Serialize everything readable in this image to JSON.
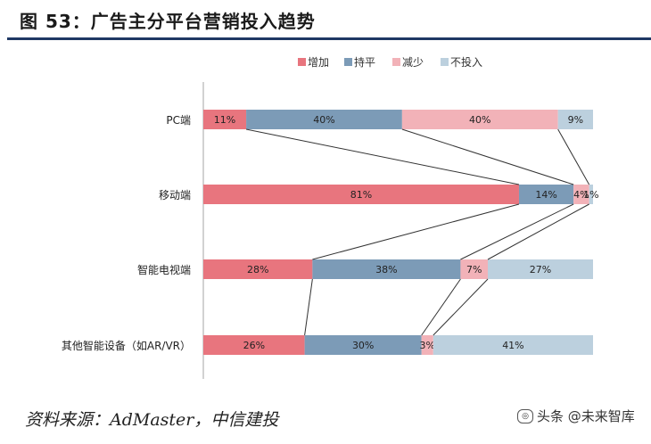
{
  "figure": {
    "title": "图 53：广告主分平台营销投入趋势",
    "source": "资料来源：AdMaster，中信建投",
    "watermark": "头条 @未来智库"
  },
  "colors": {
    "increase": "#e8757e",
    "flat": "#7c9bb7",
    "decrease": "#f2b2b8",
    "none": "#bcd0de",
    "title_rule": "#1f3864"
  },
  "chart_data": {
    "type": "bar",
    "orientation": "horizontal",
    "stacked": true,
    "title": "",
    "xlabel": "",
    "ylabel": "",
    "xlim": [
      0,
      100
    ],
    "legend_position": "top-right",
    "categories": [
      "PC端",
      "移动端",
      "智能电视端",
      "其他智能设备（如AR/VR）"
    ],
    "series": [
      {
        "name": "增加",
        "values": [
          11,
          81,
          28,
          26
        ],
        "labels": [
          "11%",
          "81%",
          "28%",
          "26%"
        ]
      },
      {
        "name": "持平",
        "values": [
          40,
          14,
          38,
          30
        ],
        "labels": [
          "40%",
          "14%",
          "38%",
          "30%"
        ]
      },
      {
        "name": "减少",
        "values": [
          40,
          4,
          7,
          3
        ],
        "labels": [
          "40%",
          "4%",
          "7%",
          "3%"
        ]
      },
      {
        "name": "不投入",
        "values": [
          9,
          1,
          27,
          41
        ],
        "labels": [
          "9%",
          "1%",
          "27%",
          "41%"
        ]
      }
    ],
    "series_lines": true
  }
}
